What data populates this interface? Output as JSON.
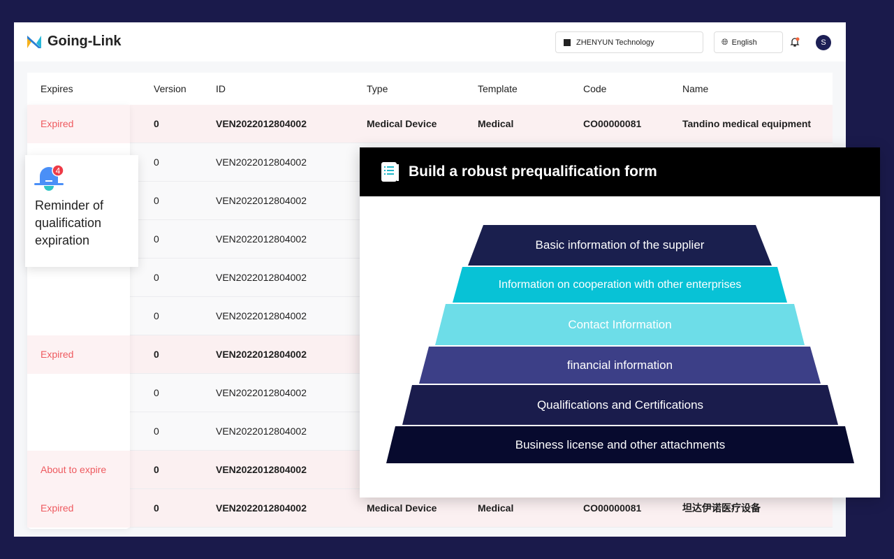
{
  "header": {
    "brand": "Going-Link",
    "org": "ZHENYUN Technology",
    "language": "English",
    "avatar": "S",
    "notification_dot_color": "#f0643c"
  },
  "table": {
    "columns": [
      "Expires",
      "Version",
      "ID",
      "Type",
      "Template",
      "Code",
      "Name"
    ],
    "rows": [
      {
        "status": "Expired",
        "version": "0",
        "id": "VEN2022012804002",
        "type": "Medical Device",
        "template": "Medical",
        "code": "CO00000081",
        "name": "Tandino medical equipment"
      },
      {
        "status": "",
        "version": "0",
        "id": "VEN2022012804002"
      },
      {
        "status": "",
        "version": "0",
        "id": "VEN2022012804002"
      },
      {
        "status": "",
        "version": "0",
        "id": "VEN2022012804002"
      },
      {
        "status": "",
        "version": "0",
        "id": "VEN2022012804002"
      },
      {
        "status": "",
        "version": "0",
        "id": "VEN2022012804002"
      },
      {
        "status": "Expired",
        "version": "0",
        "id": "VEN2022012804002"
      },
      {
        "status": "",
        "version": "0",
        "id": "VEN2022012804002"
      },
      {
        "status": "",
        "version": "0",
        "id": "VEN2022012804002"
      },
      {
        "status": "About to expire",
        "version": "0",
        "id": "VEN2022012804002"
      },
      {
        "status": "Expired",
        "version": "0",
        "id": "VEN2022012804002",
        "type": "Medical Device",
        "template": "Medical",
        "code": "CO00000081",
        "name": "坦达伊诺医疗设备"
      }
    ]
  },
  "toast": {
    "badge": "4",
    "text": "Reminder of qualification expiration"
  },
  "card": {
    "title": "Build a robust prequalification form",
    "layers": [
      {
        "label": "Basic information of the supplier",
        "color": "#1a1f4e"
      },
      {
        "label": "Information on cooperation with other enterprises",
        "color": "#08c2d6"
      },
      {
        "label": "Contact Information",
        "color": "#6ddde8"
      },
      {
        "label": "financial information",
        "color": "#3c3f87"
      },
      {
        "label": "Qualifications and Certifications",
        "color": "#1a1c4c"
      },
      {
        "label": "Business license and other attachments",
        "color": "#070a2e"
      }
    ]
  }
}
